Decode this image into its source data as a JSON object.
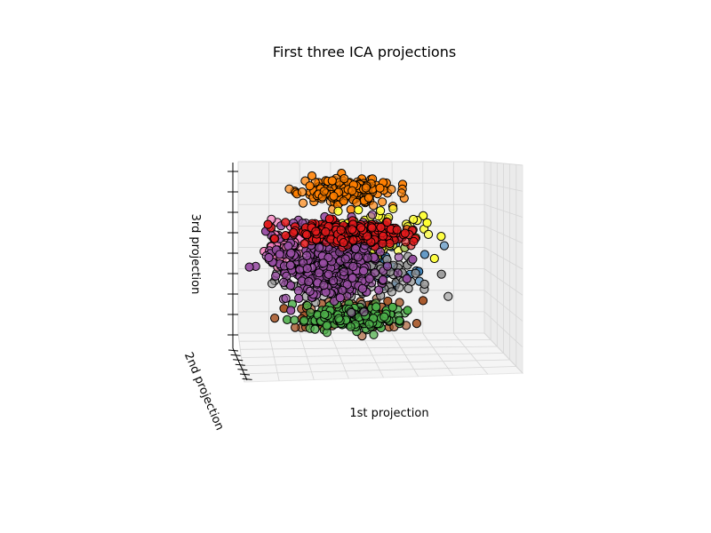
{
  "chart_data": {
    "type": "scatter",
    "projection": "3d",
    "title": "First three ICA projections",
    "xlabel": "1st projection",
    "ylabel": "2nd projection",
    "zlabel": "3rd projection",
    "tick_labels_visible": false,
    "grid": true,
    "marker": "circle",
    "marker_edge_color": "#000000",
    "palette": "Set1",
    "series": [
      {
        "color": "#ff7f00",
        "approx_count": 450,
        "x": [
          -0.6,
          0.3
        ],
        "z": [
          0.55,
          0.95
        ]
      },
      {
        "color": "#4daf4a",
        "approx_count": 500,
        "x": [
          -0.6,
          0.4
        ],
        "z": [
          -0.95,
          -0.6
        ]
      },
      {
        "color": "#984ea3",
        "approx_count": 1200,
        "x": [
          -0.85,
          0.3
        ],
        "z": [
          -0.6,
          0.45
        ]
      },
      {
        "color": "#e41a1c",
        "approx_count": 800,
        "x": [
          -0.7,
          0.45
        ],
        "z": [
          0.1,
          0.4
        ]
      },
      {
        "color": "#ffff33",
        "approx_count": 220,
        "x": [
          -0.5,
          0.7
        ],
        "z": [
          -0.1,
          0.6
        ]
      },
      {
        "color": "#a65628",
        "approx_count": 350,
        "x": [
          -0.7,
          0.5
        ],
        "z": [
          -0.95,
          -0.5
        ]
      },
      {
        "color": "#999999",
        "approx_count": 400,
        "x": [
          -0.85,
          0.6
        ],
        "z": [
          -0.6,
          0.05
        ]
      },
      {
        "color": "#f781bf",
        "approx_count": 200,
        "x": [
          -0.85,
          -0.4
        ],
        "z": [
          -0.3,
          0.5
        ]
      },
      {
        "color": "#377eb8",
        "approx_count": 150,
        "x": [
          -0.3,
          0.6
        ],
        "z": [
          -0.5,
          0.3
        ]
      }
    ]
  }
}
